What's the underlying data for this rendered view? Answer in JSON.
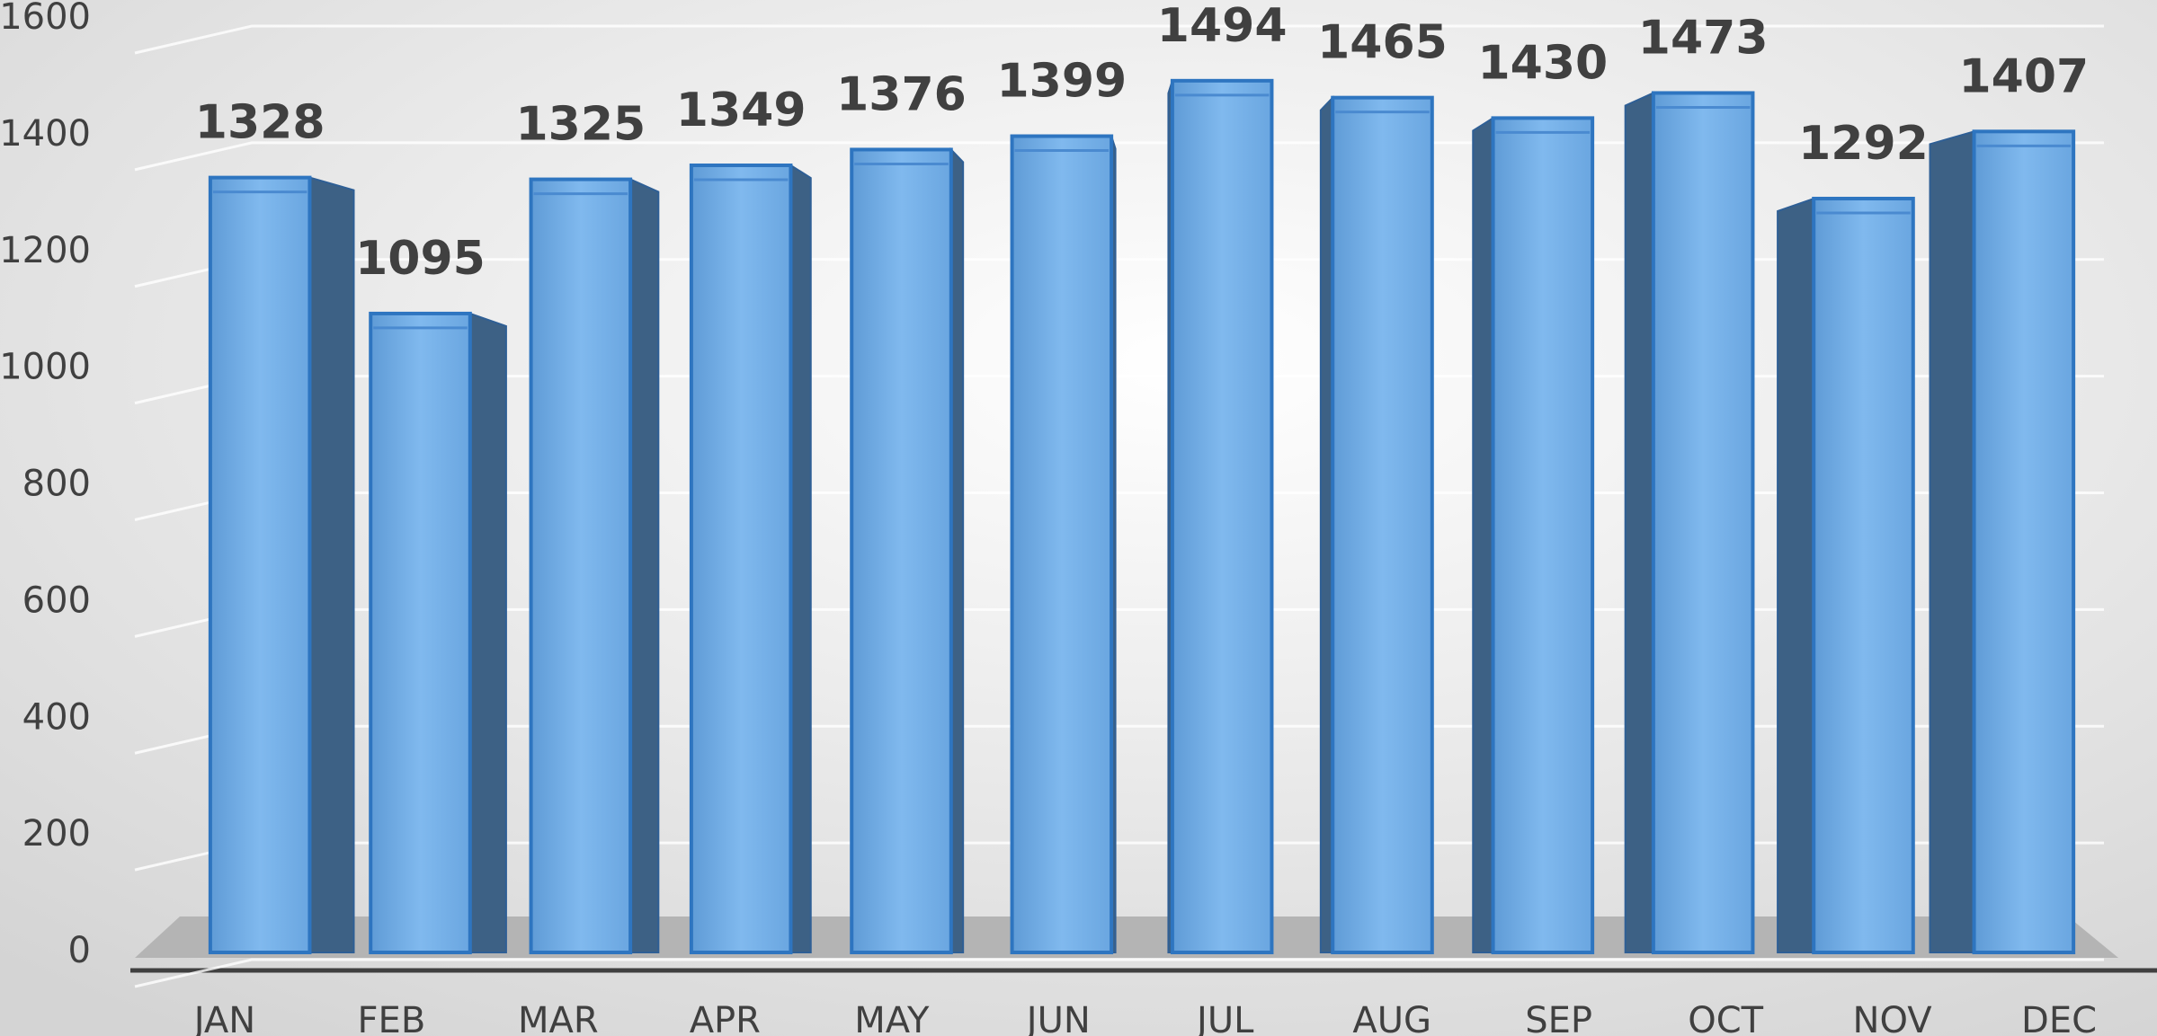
{
  "chart_data": {
    "type": "bar",
    "categories": [
      "JAN",
      "FEB",
      "MAR",
      "APR",
      "MAY",
      "JUN",
      "JUL",
      "AUG",
      "SEP",
      "OCT",
      "NOV",
      "DEC"
    ],
    "values": [
      1328,
      1095,
      1325,
      1349,
      1376,
      1399,
      1494,
      1465,
      1430,
      1473,
      1292,
      1407
    ],
    "color": "#74aee6",
    "ylim": [
      0,
      1600
    ],
    "yticks": [
      0,
      200,
      400,
      600,
      800,
      1000,
      1200,
      1400,
      1600
    ],
    "grid": true
  }
}
